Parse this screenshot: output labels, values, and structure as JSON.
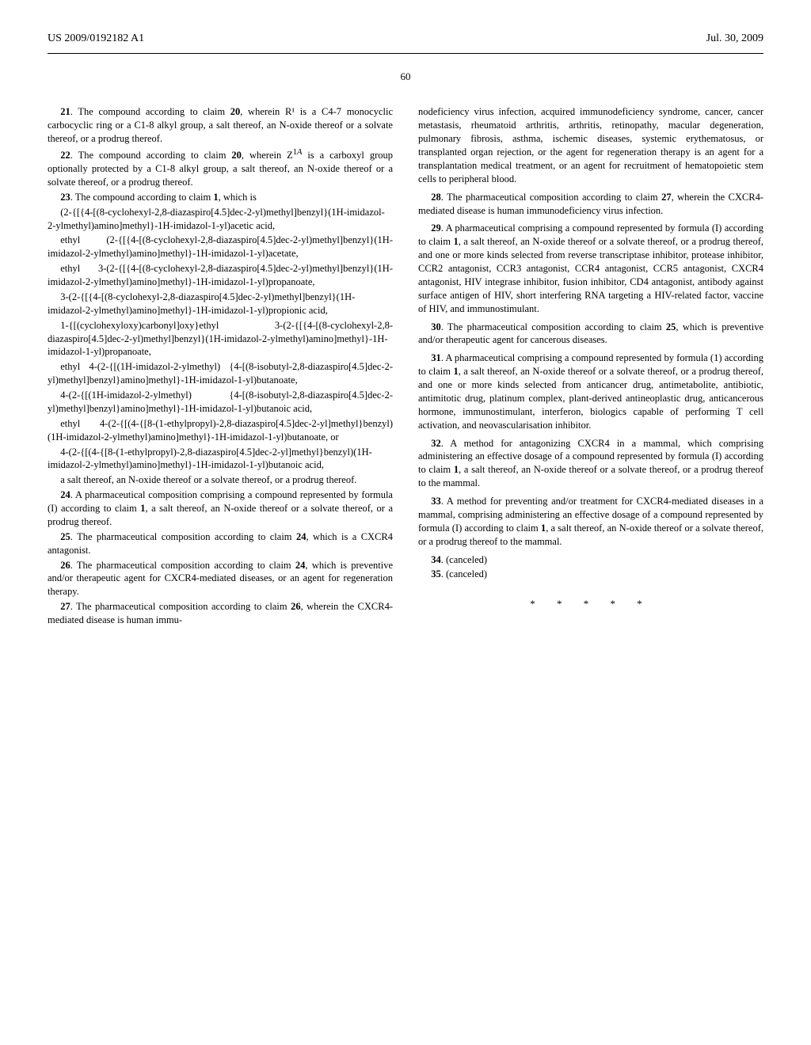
{
  "header": {
    "left": "US 2009/0192182 A1",
    "right": "Jul. 30, 2009"
  },
  "page_number": "60",
  "left_column": {
    "claim21": "21. The compound according to claim 20, wherein R¹ is a C4-7 monocyclic carbocyclic ring or a C1-8 alkyl group, a salt thereof, an N-oxide thereof or a solvate thereof, or a prodrug thereof.",
    "claim22": "22. The compound according to claim 20, wherein Z¹ᴬ is a carboxyl group optionally protected by a C1-8 alkyl group, a salt thereof, an N-oxide thereof or a solvate thereof, or a prodrug thereof.",
    "claim23_head": "23. The compound according to claim 1, which is",
    "claim23_items": [
      "(2-{[{4-[(8-cyclohexyl-2,8-diazaspiro[4.5]dec-2-yl)methyl]benzyl}(1H-imidazol-2-ylmethyl)amino]methyl}-1H-imidazol-1-yl)acetic acid,",
      "ethyl (2-{[{4-[(8-cyclohexyl-2,8-diazaspiro[4.5]dec-2-yl)methyl]benzyl}(1H-imidazol-2-ylmethyl)amino]methyl}-1H-imidazol-1-yl)acetate,",
      "ethyl 3-(2-{[{4-[(8-cyclohexyl-2,8-diazaspiro[4.5]dec-2-yl)methyl]benzyl}(1H-imidazol-2-ylmethyl)amino]methyl}-1H-imidazol-1-yl)propanoate,",
      "3-(2-{[{4-[(8-cyclohexyl-2,8-diazaspiro[4.5]dec-2-yl)methyl]benzyl}(1H-imidazol-2-ylmethyl)amino]methyl}-1H-imidazol-1-yl)propionic acid,",
      "1-{[(cyclohexyloxy)carbonyl]oxy}ethyl 3-(2-{[{4-[(8-cyclohexyl-2,8-diazaspiro[4.5]dec-2-yl)methyl]benzyl}(1H-imidazol-2-ylmethyl)amino]methyl}-1H-imidazol-1-yl)propanoate,",
      "ethyl 4-(2-{[(1H-imidazol-2-ylmethyl) {4-[(8-isobutyl-2,8-diazaspiro[4.5]dec-2-yl)methyl]benzyl}amino]methyl}-1H-imidazol-1-yl)butanoate,",
      "4-(2-{[(1H-imidazol-2-ylmethyl) {4-[(8-isobutyl-2,8-diazaspiro[4.5]dec-2-yl)methyl]benzyl}amino]methyl}-1H-imidazol-1-yl)butanoic acid,",
      "ethyl 4-(2-{[(4-{[8-(1-ethylpropyl)-2,8-diazaspiro[4.5]dec-2-yl]methyl}benzyl)(1H-imidazol-2-ylmethyl)amino]methyl}-1H-imidazol-1-yl)butanoate, or",
      "4-(2-{[(4-{[8-(1-ethylpropyl)-2,8-diazaspiro[4.5]dec-2-yl]methyl}benzyl)(1H-imidazol-2-ylmethyl)amino]methyl}-1H-imidazol-1-yl)butanoic acid,"
    ],
    "claim23_tail": "a salt thereof, an N-oxide thereof or a solvate thereof, or a prodrug thereof.",
    "claim24": "24. A pharmaceutical composition comprising a compound represented by formula (I) according to claim 1, a salt thereof, an N-oxide thereof or a solvate thereof, or a prodrug thereof.",
    "claim25": "25. The pharmaceutical composition according to claim 24, which is a CXCR4 antagonist.",
    "claim26": "26. The pharmaceutical composition according to claim 24, which is preventive and/or therapeutic agent for CXCR4-mediated diseases, or an agent for regeneration therapy.",
    "claim27_start": "27. The pharmaceutical composition according to claim 26, wherein the CXCR4-mediated disease is human immu-"
  },
  "right_column": {
    "claim27_end": "nodeficiency virus infection, acquired immunodeficiency syndrome, cancer, cancer metastasis, rheumatoid arthritis, arthritis, retinopathy, macular degeneration, pulmonary fibrosis, asthma, ischemic diseases, systemic erythematosus, or transplanted organ rejection, or the agent for regeneration therapy is an agent for a transplantation medical treatment, or an agent for recruitment of hematopoietic stem cells to peripheral blood.",
    "claim28": "28. The pharmaceutical composition according to claim 27, wherein the CXCR4-mediated disease is human immunodeficiency virus infection.",
    "claim29": "29. A pharmaceutical comprising a compound represented by formula (I) according to claim 1, a salt thereof, an N-oxide thereof or a solvate thereof, or a prodrug thereof, and one or more kinds selected from reverse transcriptase inhibitor, protease inhibitor, CCR2 antagonist, CCR3 antagonist, CCR4 antagonist, CCR5 antagonist, CXCR4 antagonist, HIV integrase inhibitor, fusion inhibitor, CD4 antagonist, antibody against surface antigen of HIV, short interfering RNA targeting a HIV-related factor, vaccine of HIV, and immunostimulant.",
    "claim30": "30. The pharmaceutical composition according to claim 25, which is preventive and/or therapeutic agent for cancerous diseases.",
    "claim31": "31. A pharmaceutical comprising a compound represented by formula (1) according to claim 1, a salt thereof, an N-oxide thereof or a solvate thereof, or a prodrug thereof, and one or more kinds selected from anticancer drug, antimetabolite, antibiotic, antimitotic drug, platinum complex, plant-derived antineoplastic drug, anticancerous hormone, immunostimulant, interferon, biologics capable of performing T cell activation, and neovascularisation inhibitor.",
    "claim32": "32. A method for antagonizing CXCR4 in a mammal, which comprising administering an effective dosage of a compound represented by formula (I) according to claim 1, a salt thereof, an N-oxide thereof or a solvate thereof, or a prodrug thereof to the mammal.",
    "claim33": "33. A method for preventing and/or treatment for CXCR4-mediated diseases in a mammal, comprising administering an effective dosage of a compound represented by formula (I) according to claim 1, a salt thereof, an N-oxide thereof or a solvate thereof, or a prodrug thereof to the mammal.",
    "claim34": "34. (canceled)",
    "claim35": "35. (canceled)",
    "asterisks": "* * * * *"
  },
  "bold_nums": {
    "n1": "1",
    "n20": "20",
    "n21": "21",
    "n22": "22",
    "n23": "23",
    "n24": "24",
    "n25": "25",
    "n26": "26",
    "n27": "27",
    "n28": "28",
    "n29": "29",
    "n30": "30",
    "n31": "31",
    "n32": "32",
    "n33": "33",
    "n34": "34",
    "n35": "35"
  }
}
